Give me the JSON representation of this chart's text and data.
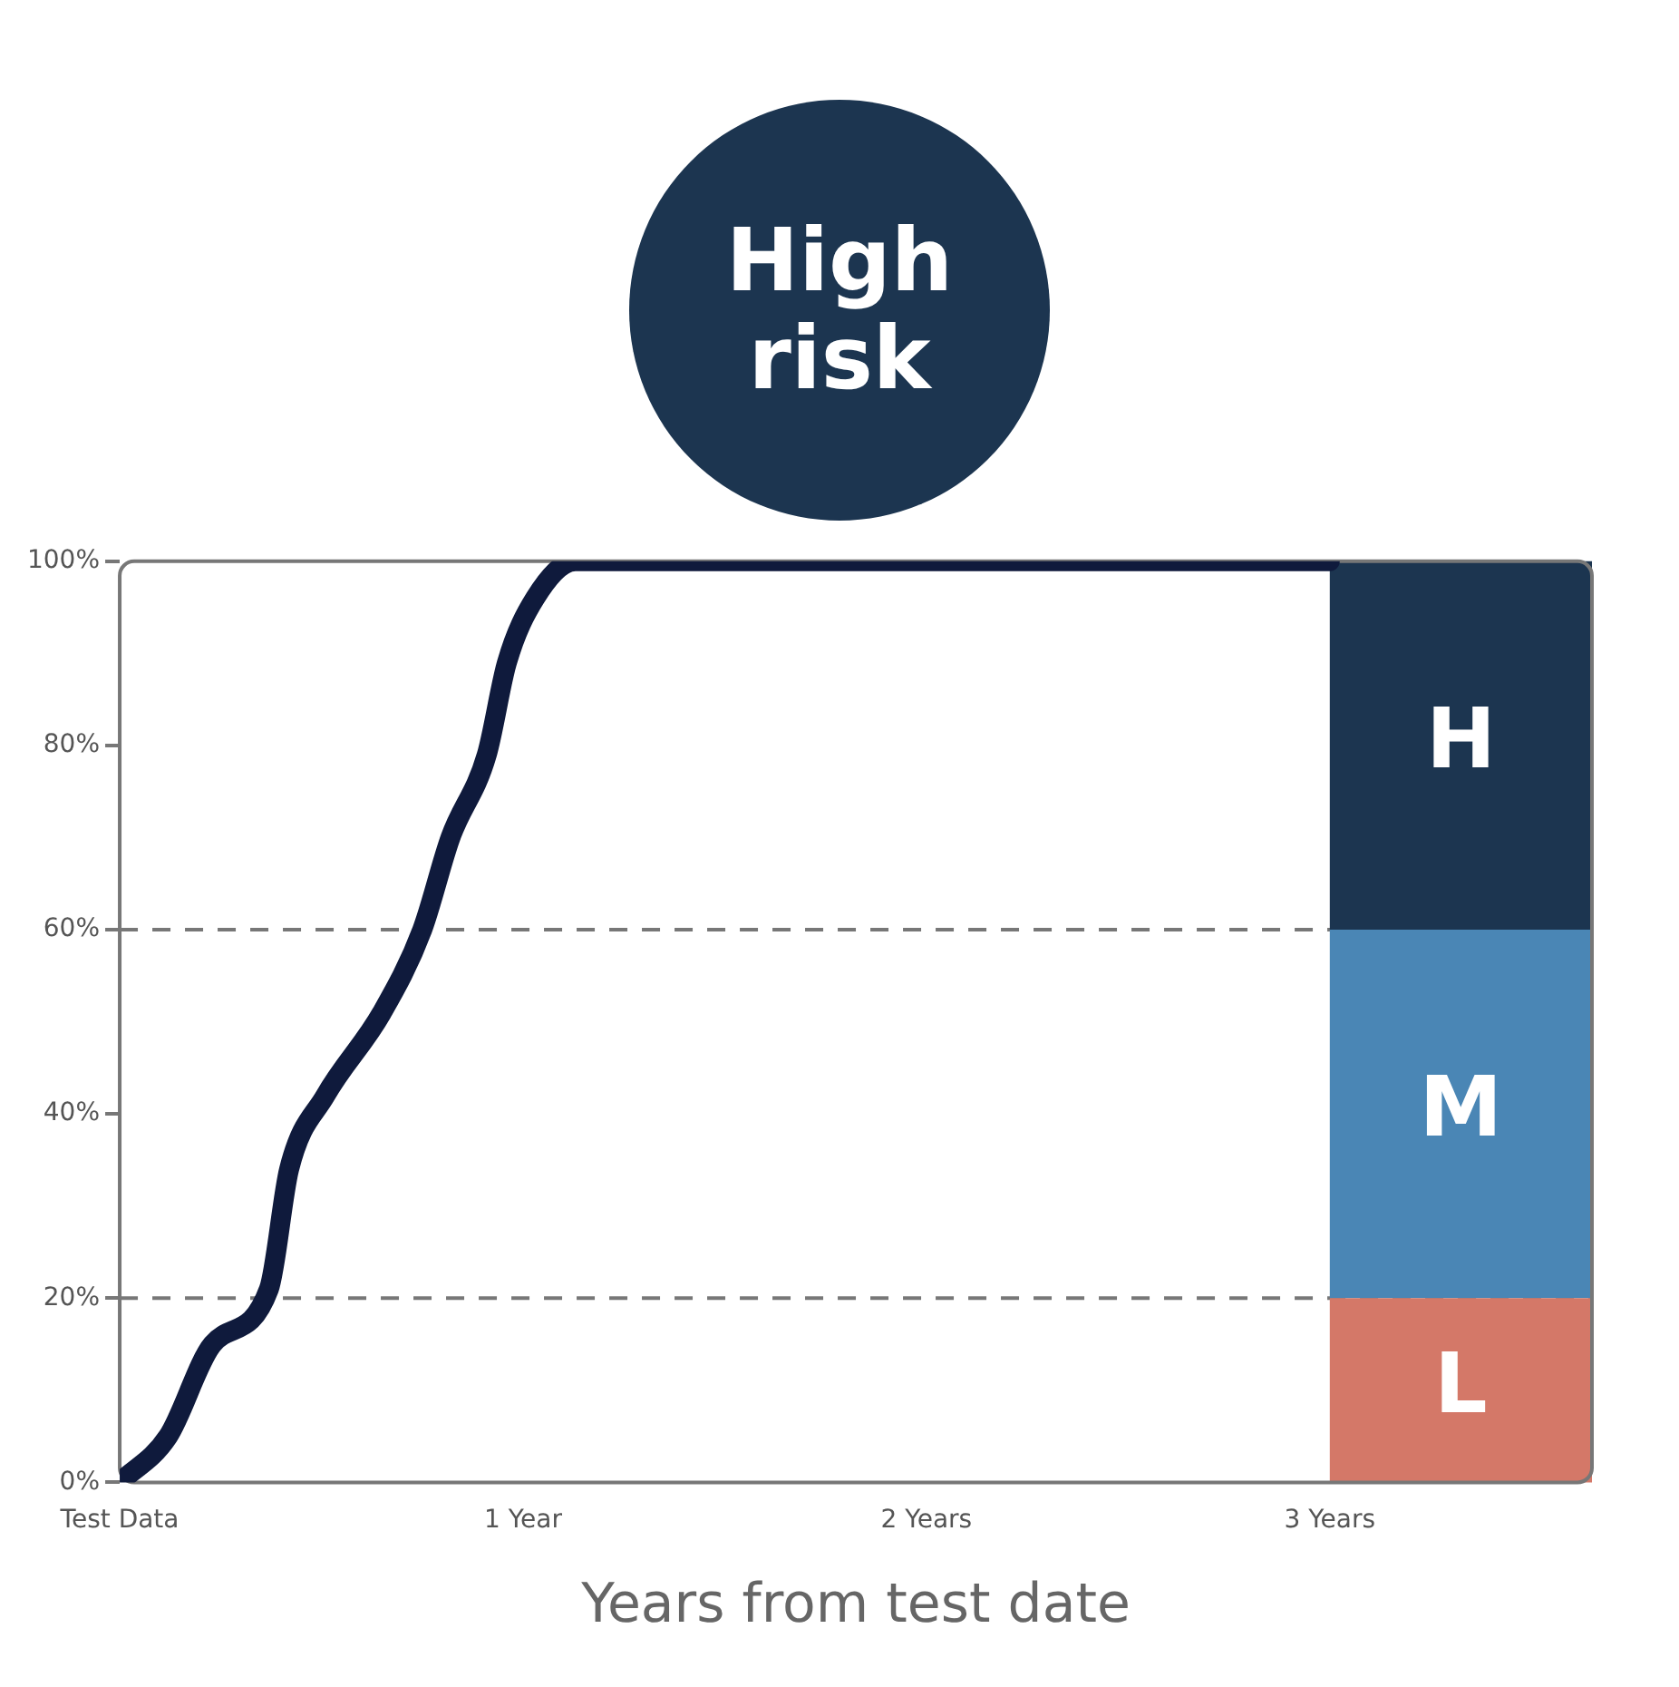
{
  "chart_data": {
    "type": "line",
    "title": "High risk",
    "xlabel": "Years from test date",
    "xlim": [
      0,
      3.65
    ],
    "xticks": [
      {
        "value": 0,
        "label": "Test Data"
      },
      {
        "value": 1,
        "label": "1 Year"
      },
      {
        "value": 2,
        "label": "2 Years"
      },
      {
        "value": 3,
        "label": "3 Years"
      }
    ],
    "ylim": [
      0,
      100
    ],
    "yticks": [
      {
        "value": 0,
        "label": "0%"
      },
      {
        "value": 20,
        "label": "20%"
      },
      {
        "value": 40,
        "label": "40%"
      },
      {
        "value": 60,
        "label": "60%"
      },
      {
        "value": 80,
        "label": "80%"
      },
      {
        "value": 100,
        "label": "100%"
      }
    ],
    "grid": false,
    "legend": false,
    "marker": "none",
    "line_style": "solid",
    "series": [
      {
        "color": "#0f1a3c",
        "x": [
          0,
          0.12,
          0.23,
          0.37,
          0.42,
          0.51,
          0.65,
          0.75,
          0.82,
          0.91,
          0.96,
          1.03,
          1.13,
          3
        ],
        "values": [
          0,
          5,
          15,
          21,
          34,
          42,
          51,
          60,
          70,
          79,
          89,
          96,
          100,
          100
        ]
      }
    ],
    "ref_lines": [
      {
        "axis": "y",
        "value": 20,
        "color": "#777777",
        "line_style": "dashed"
      },
      {
        "axis": "y",
        "value": 60,
        "color": "#777777",
        "line_style": "dashed"
      }
    ],
    "bands": [
      {
        "axis": "y",
        "from": 60,
        "to": 100,
        "label": "H",
        "color": "#1c3550"
      },
      {
        "axis": "y",
        "from": 20,
        "to": 60,
        "label": "M",
        "color": "#4a86b5"
      },
      {
        "axis": "y",
        "from": 0,
        "to": 20,
        "label": "L",
        "color": "#d47868"
      }
    ]
  }
}
